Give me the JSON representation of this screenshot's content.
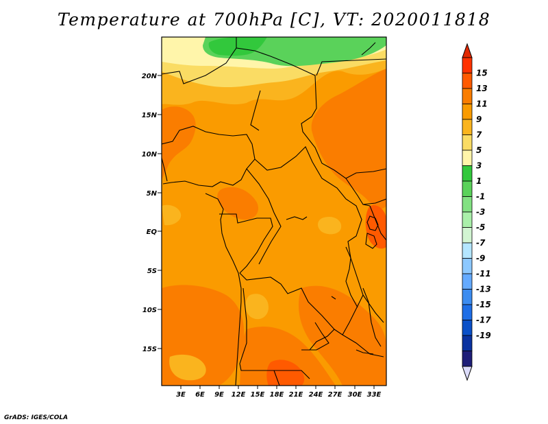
{
  "title": "Temperature at 700hPa [C], VT: 2020011818",
  "credit": "GrADS: IGES/COLA",
  "map": {
    "lat_labels": [
      "20N",
      "15N",
      "10N",
      "5N",
      "EQ",
      "5S",
      "10S",
      "15S"
    ],
    "lon_labels": [
      "3E",
      "6E",
      "9E",
      "12E",
      "15E",
      "18E",
      "21E",
      "24E",
      "27E",
      "30E",
      "33E"
    ]
  },
  "colorbar": {
    "labels": [
      "15",
      "13",
      "11",
      "9",
      "7",
      "5",
      "3",
      "1",
      "-1",
      "-3",
      "-5",
      "-7",
      "-9",
      "-11",
      "-13",
      "-15",
      "-17",
      "-19"
    ],
    "colors": [
      "#ff3200",
      "#ff5a00",
      "#fa7d00",
      "#fa9b00",
      "#fab41e",
      "#fadc64",
      "#fff5aa",
      "#32c83c",
      "#5ad25a",
      "#82e182",
      "#aaf0aa",
      "#d2f5d2",
      "#b4e6ff",
      "#8cc8ff",
      "#64aaff",
      "#3c8cf0",
      "#1e6ee6",
      "#0a50c8",
      "#0a32a0",
      "#1e1e78"
    ],
    "top_arrow_color": "#e12800",
    "bottom_arrow_color": "#dcdcfa"
  },
  "palette": {
    "background": "#fa9b00",
    "warm": "#fa7d00",
    "hot": "#ff5a00",
    "hottest": "#ff3200",
    "mild": "#fab41e",
    "cool": "#fadc64",
    "pale": "#fff5aa",
    "green": "#5ad25a",
    "dark_green": "#32c83c"
  }
}
